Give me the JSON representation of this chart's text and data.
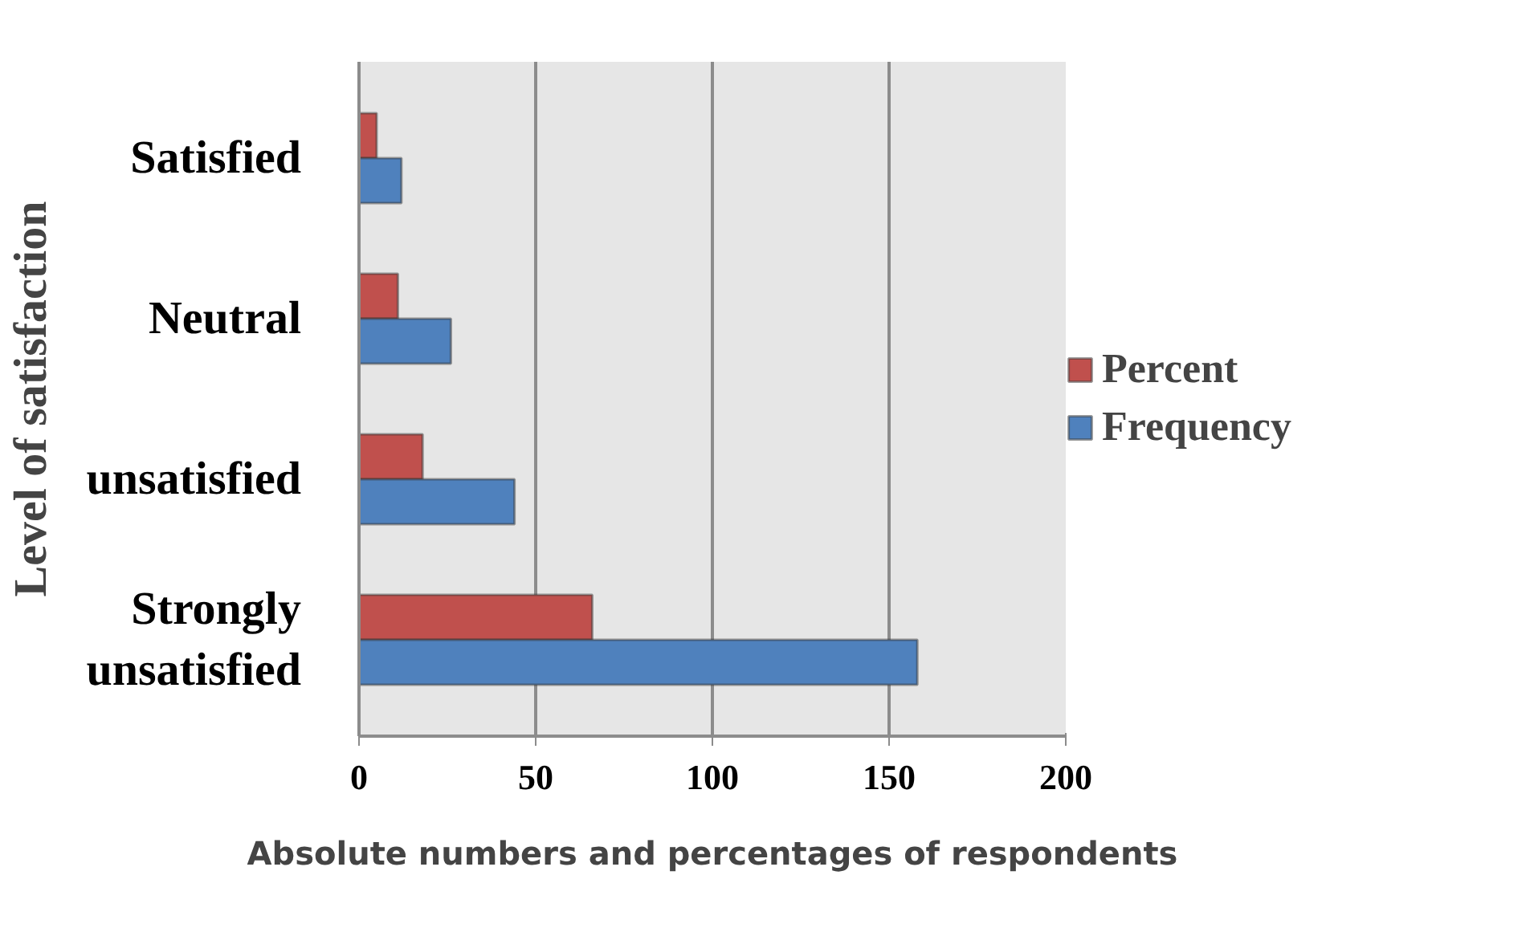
{
  "chart_data": {
    "type": "bar",
    "orientation": "horizontal",
    "xlabel": "Absolute numbers and percentages of respondents",
    "ylabel": "Level of satisfaction",
    "categories": [
      "Satisfied",
      "Neutral",
      "unsatisfied",
      "Strongly unsatisfied"
    ],
    "series": [
      {
        "name": "Percent",
        "color": "#c0504d",
        "values": [
          5,
          11,
          18,
          66
        ]
      },
      {
        "name": "Frequency",
        "color": "#4f81bd",
        "values": [
          12,
          26,
          44,
          158
        ]
      }
    ],
    "xlim": [
      0,
      200
    ],
    "xticks": [
      0,
      50,
      100,
      150,
      200
    ],
    "grid": "x",
    "legend": "right"
  }
}
